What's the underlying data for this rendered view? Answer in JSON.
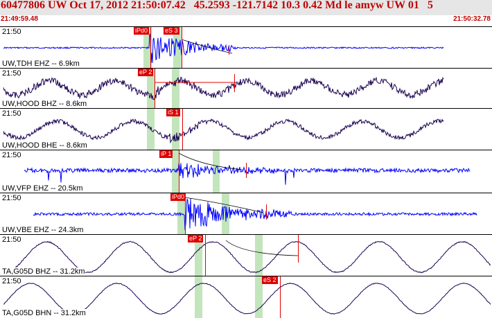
{
  "header": {
    "event_line": "60477806 UW Oct 17, 2012 21:50:07.42   45.2593 -121.7142 10.3 0.42 Md le amyw UW 01   5",
    "time_start": "21:49:59.48",
    "time_end": "21:50:32.78"
  },
  "panels": [
    {
      "time": "21:50",
      "label": "UW,TDH EHZ -- 6.9km",
      "color": "#0000ff",
      "picks": [
        "iPd0",
        "eS 3"
      ]
    },
    {
      "time": "21:50",
      "label": "UW,HOOD BHZ -- 8.6km",
      "color": "#1a0050",
      "picks": [
        "eP 2"
      ]
    },
    {
      "time": "21:50",
      "label": "UW,HOOD BHE -- 8.6km",
      "color": "#1a0050",
      "picks": [
        "iS 1"
      ]
    },
    {
      "time": "21:50",
      "label": "UW,VFP EHZ -- 20.5km",
      "color": "#0000ff",
      "picks": [
        "iP 1"
      ]
    },
    {
      "time": "21:50",
      "label": "UW,VBE EHZ -- 24.3km",
      "color": "#0000ff",
      "picks": [
        "iPd0"
      ]
    },
    {
      "time": "21:50",
      "label": "TA,G05D BHZ -- 31.2km",
      "color": "#1a0050",
      "picks": [
        "eP 2"
      ]
    },
    {
      "time": "21:50",
      "label": "TA,G05D BHN -- 31.2km",
      "color": "#1a0050",
      "picks": [
        "eS 2"
      ]
    }
  ],
  "colors": {
    "pick": "#e00000",
    "shade": "#b8e0b0",
    "header_text": "#c00000",
    "header_bg": "#e6e6e6"
  }
}
